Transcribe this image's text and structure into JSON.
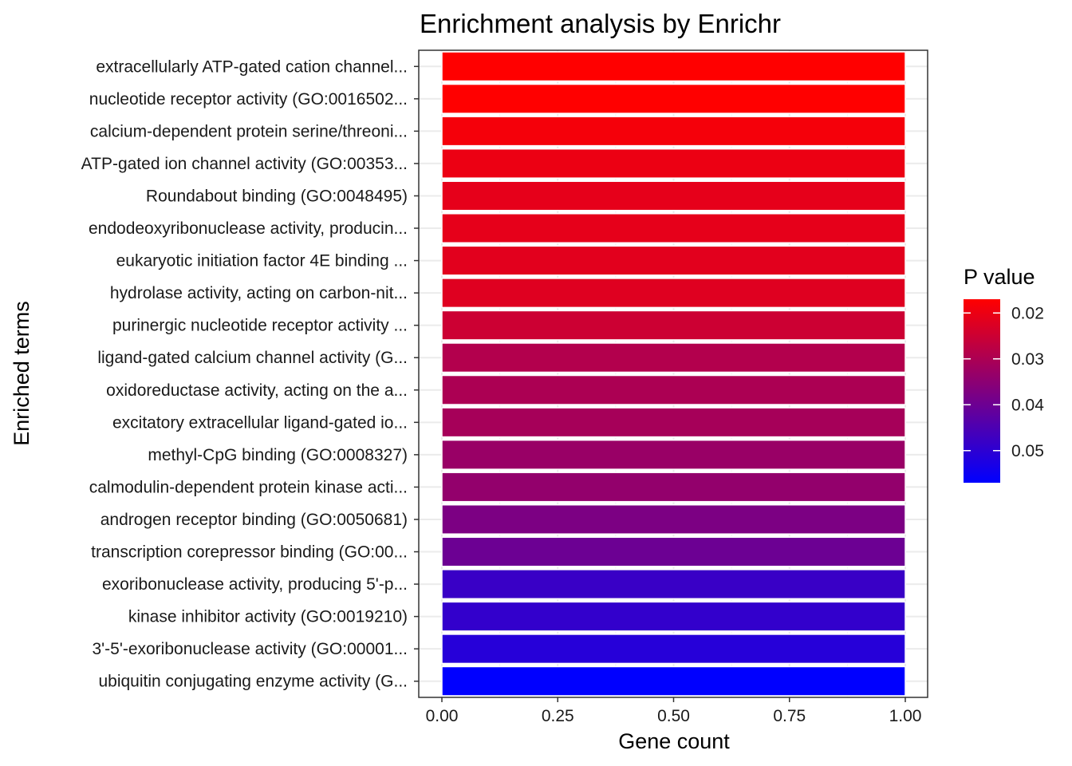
{
  "chart_data": {
    "type": "bar",
    "orientation": "horizontal",
    "title": "Enrichment analysis by Enrichr",
    "xlabel": "Gene count",
    "ylabel": "Enriched terms",
    "xlim": [
      0,
      1
    ],
    "x_ticks": [
      0,
      0.25,
      0.5,
      0.75,
      1
    ],
    "x_tick_labels": [
      "0.00",
      "0.25",
      "0.50",
      "0.75",
      "1.00"
    ],
    "grid": true,
    "categories": [
      "extracellularly ATP-gated cation channel...",
      "nucleotide receptor activity (GO:0016502...",
      "calcium-dependent protein serine/threoni...",
      "ATP-gated ion channel activity (GO:00353...",
      "Roundabout binding (GO:0048495)",
      "endodeoxyribonuclease activity, producin...",
      "eukaryotic initiation factor 4E binding ...",
      "hydrolase activity, acting on carbon-nit...",
      "purinergic nucleotide receptor activity ...",
      "ligand-gated calcium channel activity (G...",
      "oxidoreductase activity, acting on the a...",
      "excitatory extracellular ligand-gated io...",
      "methyl-CpG binding (GO:0008327)",
      "calmodulin-dependent protein kinase acti...",
      "androgen receptor binding (GO:0050681)",
      "transcription corepressor binding (GO:00...",
      "exoribonuclease activity, producing 5'-p...",
      "kinase inhibitor activity (GO:0019210)",
      "3'-5'-exoribonuclease activity (GO:00001...",
      "ubiquitin conjugating enzyme activity (G..."
    ],
    "values": [
      1,
      1,
      1,
      1,
      1,
      1,
      1,
      1,
      1,
      1,
      1,
      1,
      1,
      1,
      1,
      1,
      1,
      1,
      1,
      1
    ],
    "p_values": [
      0.017,
      0.017,
      0.0185,
      0.02,
      0.021,
      0.021,
      0.0215,
      0.022,
      0.025,
      0.029,
      0.03,
      0.031,
      0.033,
      0.034,
      0.0375,
      0.04,
      0.048,
      0.049,
      0.051,
      0.057
    ],
    "color_scale": {
      "name": "P value",
      "low_color": "#ff0000",
      "high_color": "#0000ff",
      "range": [
        0.017,
        0.057
      ],
      "ticks": [
        0.02,
        0.03,
        0.04,
        0.05
      ],
      "tick_labels": [
        "0.02",
        "0.03",
        "0.04",
        "0.05"
      ]
    },
    "legend_position": "right",
    "bar_outline_color": "#ffffff"
  }
}
